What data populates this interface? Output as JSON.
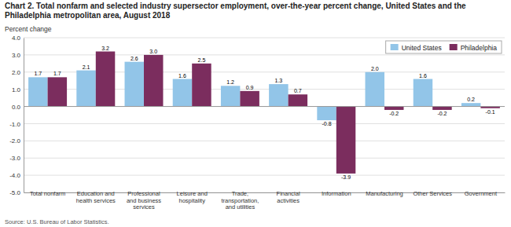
{
  "chart_data": {
    "type": "bar",
    "title": "Chart 2. Total nonfarm and selected industry supersector employment, over-the-year percent change, United States and the\nPhiladelphia metropolitan area, August 2018",
    "ylabel": "Percent change",
    "annotations": [
      "Source: U.S. Bureau of Labor Statistics."
    ],
    "categories": [
      "Total nonfarm",
      "Education and\nhealth services",
      "Professional\nand business\nservices",
      "Leisure and\nhospitality",
      "Trade,\ntransportation,\nand utilities",
      "Financial\nactivities",
      "Information",
      "Manufacturing",
      "Other Services",
      "Government"
    ],
    "series": [
      {
        "name": "United States",
        "color": "#92C5E8",
        "values": [
          1.7,
          2.1,
          2.6,
          1.6,
          1.2,
          1.3,
          -0.8,
          2.0,
          1.6,
          0.2
        ],
        "value_labels": [
          "1.7",
          "2.1",
          "2.6",
          "1.6",
          "1.2",
          "1.3",
          "-0.8",
          "2.0",
          "1.6",
          "0.2"
        ]
      },
      {
        "name": "Philadelphia",
        "color": "#7B2D5E",
        "values": [
          1.7,
          3.2,
          3.0,
          2.5,
          0.9,
          0.7,
          -3.9,
          -0.2,
          -0.2,
          -0.1
        ],
        "value_labels": [
          "1.7",
          "3.2",
          "3.0",
          "2.5",
          "0.9",
          "0.7",
          "-3.9",
          "-0.2",
          "-0.2",
          "-0.1"
        ]
      }
    ],
    "ylim": [
      -5.0,
      4.0
    ],
    "yticks": [
      {
        "value": -5.0,
        "label": "-5.0"
      },
      {
        "value": -4.0,
        "label": "-4.0"
      },
      {
        "value": -3.0,
        "label": "-3.0"
      },
      {
        "value": -2.0,
        "label": "-2.0"
      },
      {
        "value": -1.0,
        "label": "-1.0"
      },
      {
        "value": 0.0,
        "label": "0.0"
      },
      {
        "value": 1.0,
        "label": "1.0"
      },
      {
        "value": 2.0,
        "label": "2.0"
      },
      {
        "value": 3.0,
        "label": "3.0"
      },
      {
        "value": 4.0,
        "label": "4.0"
      }
    ],
    "grid": true,
    "legend": "upper right",
    "data_labels": true
  }
}
